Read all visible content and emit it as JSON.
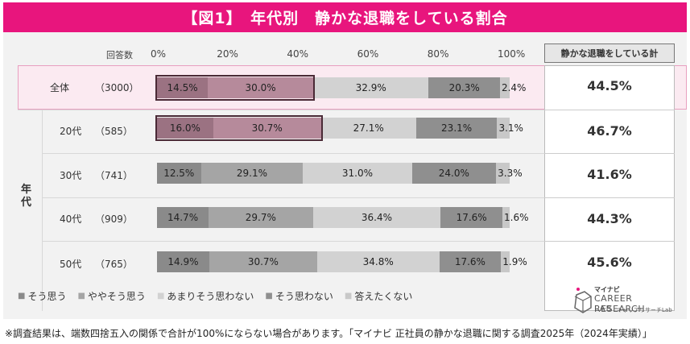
{
  "title": "【図1】　年代別　静かな退職をしている割合",
  "header": {
    "count_label": "回答数",
    "summary_label": "静かな退職をしている計",
    "axis_ticks": [
      "0%",
      "20%",
      "40%",
      "60%",
      "80%",
      "100%"
    ]
  },
  "side_label": "年代",
  "colors": {
    "brand_pink": "#e8157d",
    "seg": [
      "#8a8a8a",
      "#a5a5a5",
      "#d2d2d2",
      "#8f8f8f",
      "#c8c8c8"
    ],
    "highlight_border": "#4a2a36"
  },
  "legend": [
    {
      "marker": "■",
      "label": "そう思う"
    },
    {
      "marker": "■",
      "label": "ややそう思う"
    },
    {
      "marker": "■",
      "label": "あまりそう思わない"
    },
    {
      "marker": "■",
      "label": "そう思わない"
    },
    {
      "marker": "■",
      "label": "答えたくない"
    }
  ],
  "chart_data": {
    "type": "bar",
    "orientation": "horizontal",
    "stacked": true,
    "unit": "%",
    "xlim": [
      0,
      100
    ],
    "series_names": [
      "そう思う",
      "ややそう思う",
      "あまりそう思わない",
      "そう思わない",
      "答えたくない"
    ],
    "rows": [
      {
        "label": "全体",
        "n": "（3000）",
        "values": [
          14.5,
          30.0,
          32.9,
          20.3,
          2.4
        ],
        "labels": [
          "14.5%",
          "30.0%",
          "32.9%",
          "20.3%",
          "2.4%"
        ],
        "total": "44.5%",
        "highlight": true
      },
      {
        "label": "20代",
        "n": "（585）",
        "values": [
          16.0,
          30.7,
          27.1,
          23.1,
          3.1
        ],
        "labels": [
          "16.0%",
          "30.7%",
          "27.1%",
          "23.1%",
          "3.1%"
        ],
        "total": "46.7%",
        "highlight": true
      },
      {
        "label": "30代",
        "n": "（741）",
        "values": [
          12.5,
          29.1,
          31.0,
          24.0,
          3.3
        ],
        "labels": [
          "12.5%",
          "29.1%",
          "31.0%",
          "24.0%",
          "3.3%"
        ],
        "total": "41.6%",
        "highlight": false
      },
      {
        "label": "40代",
        "n": "（909）",
        "values": [
          14.7,
          29.7,
          36.4,
          17.6,
          1.6
        ],
        "labels": [
          "14.7%",
          "29.7%",
          "36.4%",
          "17.6%",
          "1.6%"
        ],
        "total": "44.3%",
        "highlight": false
      },
      {
        "label": "50代",
        "n": "（765）",
        "values": [
          14.9,
          30.7,
          34.8,
          17.6,
          1.9
        ],
        "labels": [
          "14.9%",
          "30.7%",
          "34.8%",
          "17.6%",
          "1.9%"
        ],
        "total": "45.6%",
        "highlight": false
      }
    ]
  },
  "logo": {
    "top": "マイナビ",
    "main": "CAREER RESEARCH",
    "lab": "LAB",
    "sub": "キャリアリサーチLab"
  },
  "footnote": "※調査結果は、端数四捨五入の関係で合計が100%にならない場合があります。「マイナビ 正社員の静かな退職に関する調査2025年（2024年実績）」"
}
